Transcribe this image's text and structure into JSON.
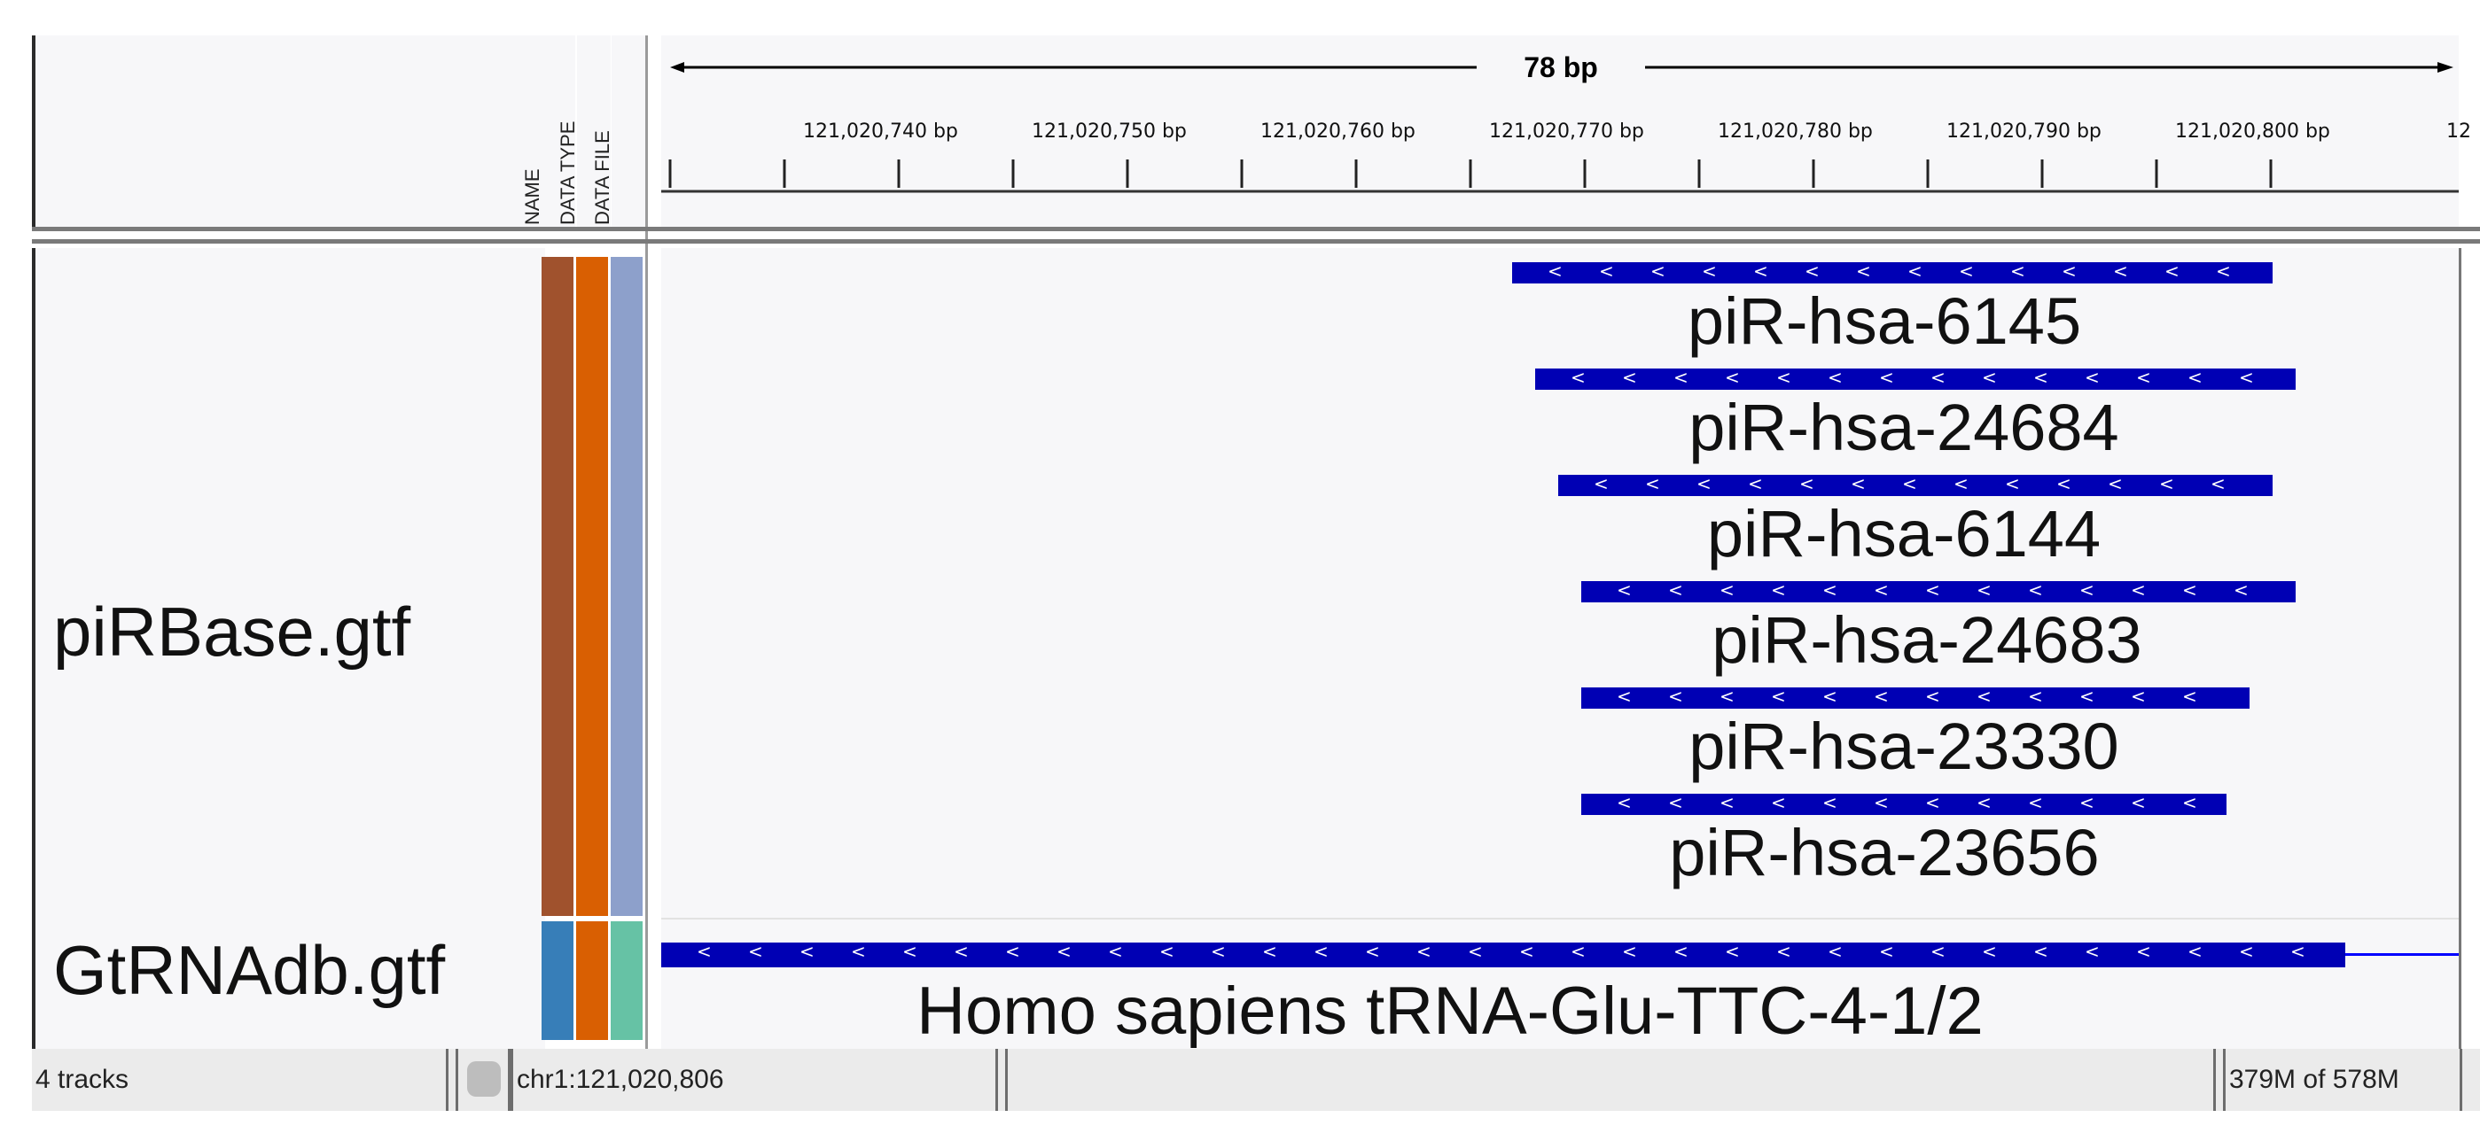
{
  "header": {
    "attributes": [
      "NAME",
      "DATA TYPE",
      "DATA FILE"
    ],
    "span_label": "78 bp",
    "ticks": [
      "121,020,740 bp",
      "121,020,750 bp",
      "121,020,760 bp",
      "121,020,770 bp",
      "121,020,780 bp",
      "121,020,790 bp",
      "121,020,800 bp",
      "12"
    ]
  },
  "tracks": [
    {
      "name": "piRBase.gtf",
      "attr_colors": [
        "#a0522d",
        "#d95f02",
        "#8da0cb"
      ],
      "features": [
        "piR-hsa-6145",
        "piR-hsa-24684",
        "piR-hsa-6144",
        "piR-hsa-24683",
        "piR-hsa-23330",
        "piR-hsa-23656"
      ]
    },
    {
      "name": "GtRNAdb.gtf",
      "attr_colors": [
        "#377eb8",
        "#d95f02",
        "#66c2a5"
      ],
      "features": [
        "Homo  sapiens  tRNA-Glu-TTC-4-1/2"
      ]
    }
  ],
  "feature_color": "#0000b4",
  "status": {
    "tracks": "4 tracks",
    "locus": "chr1:121,020,806",
    "message": "",
    "memory": "379M of 578M"
  }
}
